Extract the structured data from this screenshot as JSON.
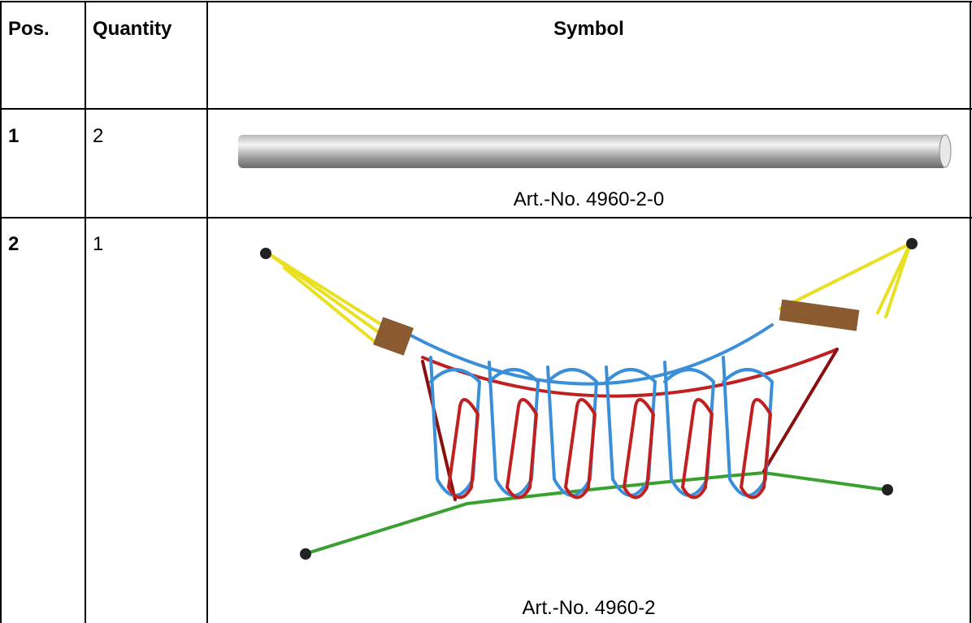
{
  "table": {
    "header": [
      "Pos.",
      "Quantity",
      "Symbol"
    ],
    "rows": [
      [
        "1",
        "2",
        "Art.-No. 4960-2-0"
      ],
      [
        "2",
        "1",
        "Art.-No. 4960-2"
      ]
    ]
  }
}
